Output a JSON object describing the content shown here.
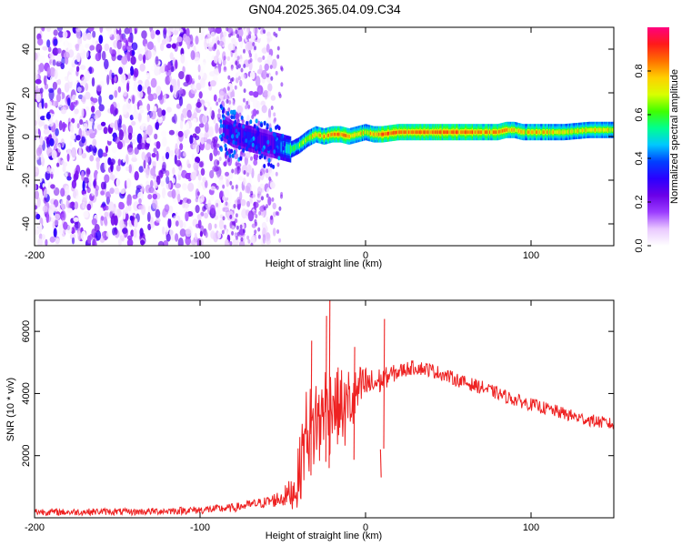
{
  "title": "GN04.2025.365.04.09.C34",
  "chart_data": [
    {
      "type": "heatmap",
      "xlabel": "Height of straight line (km)",
      "ylabel": "Frequency (Hz)",
      "xlim": [
        -200,
        150
      ],
      "ylim": [
        -50,
        50
      ],
      "xticks": [
        -200,
        -100,
        0,
        100
      ],
      "yticks": [
        -40,
        -20,
        0,
        20,
        40
      ],
      "colorbar": {
        "label": "Normalized spectral amplitude",
        "range": [
          0,
          1
        ],
        "ticks": [
          0.0,
          0.2,
          0.4,
          0.6,
          0.8
        ],
        "colormap": [
          "#ffffff",
          "#e9c8ff",
          "#9b3cff",
          "#6a00e8",
          "#2a00ff",
          "#0040ff",
          "#00c8ff",
          "#00ff90",
          "#40ff00",
          "#d8ff00",
          "#ffd000",
          "#ff7000",
          "#ff1a1a",
          "#ff007f"
        ]
      },
      "noise_region_x": [
        -200,
        -55
      ],
      "signal_ridge": {
        "x": [
          -86,
          -80,
          -75,
          -70,
          -65,
          -60,
          -55,
          -50,
          -45,
          -40,
          -35,
          -30,
          -25,
          -20,
          -15,
          -10,
          -5,
          0,
          5,
          10,
          20,
          40,
          60,
          80,
          85,
          90,
          95,
          100,
          110,
          120,
          135,
          150
        ],
        "freq": [
          4,
          1,
          0,
          -1,
          -2,
          -3,
          -4,
          -5,
          -6,
          -4,
          -1,
          1,
          0,
          1,
          1,
          0,
          1,
          2,
          1,
          1,
          2,
          2,
          2,
          2,
          3,
          3,
          2,
          2,
          2,
          2,
          3,
          3
        ],
        "amplitude": [
          0.25,
          0.3,
          0.3,
          0.3,
          0.3,
          0.25,
          0.3,
          0.45,
          0.55,
          0.6,
          0.65,
          0.75,
          0.8,
          0.85,
          0.85,
          0.8,
          0.8,
          0.7,
          0.8,
          0.9,
          0.9,
          0.9,
          0.9,
          0.85,
          0.85,
          0.8,
          0.7,
          0.8,
          0.75,
          0.7,
          0.75,
          0.7
        ]
      }
    },
    {
      "type": "line",
      "xlabel": "Height of straight line (km)",
      "ylabel": "SNR (10 * v/v)",
      "xlim": [
        -200,
        150
      ],
      "ylim": [
        0,
        7000
      ],
      "xticks": [
        -200,
        -100,
        0,
        100
      ],
      "yticks": [
        2000,
        4000,
        6000
      ],
      "color": "#ee2222",
      "series": [
        {
          "x": [
            -200,
            -180,
            -160,
            -140,
            -120,
            -100,
            -80,
            -70,
            -60,
            -50,
            -45,
            -42,
            -40,
            -38,
            -35,
            -32,
            -30,
            -28,
            -25,
            -22,
            -20,
            -18,
            -15,
            -12,
            -10,
            -8,
            -5,
            -2,
            0,
            3,
            5,
            8,
            10,
            12,
            15,
            20,
            25,
            30,
            35,
            40,
            50,
            60,
            70,
            80,
            90,
            100,
            110,
            120,
            130,
            140,
            150
          ],
          "y": [
            200,
            180,
            200,
            190,
            220,
            250,
            320,
            420,
            500,
            650,
            800,
            1000,
            1400,
            2200,
            3000,
            2600,
            3400,
            2800,
            3800,
            3200,
            4000,
            3500,
            3700,
            3300,
            3900,
            3600,
            4000,
            4200,
            4300,
            4300,
            4300,
            4400,
            4400,
            4500,
            4600,
            4700,
            4800,
            4850,
            4800,
            4750,
            4550,
            4350,
            4200,
            4000,
            3800,
            3650,
            3500,
            3350,
            3200,
            3100,
            3000
          ],
          "spread": [
            120,
            110,
            110,
            110,
            120,
            130,
            140,
            150,
            180,
            300,
            500,
            800,
            1100,
            1300,
            1500,
            1500,
            1500,
            1500,
            1400,
            1400,
            1300,
            1300,
            1200,
            1200,
            1100,
            1000,
            900,
            700,
            600,
            500,
            500,
            450,
            400,
            350,
            300,
            260,
            240,
            230,
            230,
            230,
            220,
            220,
            220,
            210,
            210,
            210,
            210,
            210,
            200,
            200,
            200
          ]
        }
      ],
      "spikes": [
        {
          "x": -33,
          "y": 5700
        },
        {
          "x": -24,
          "y": 6500
        },
        {
          "x": -22,
          "y": 7000
        },
        {
          "x": -7,
          "y": 5500
        },
        {
          "x": 11,
          "y": 6400
        },
        {
          "x": 9,
          "y": 1300
        }
      ]
    }
  ]
}
